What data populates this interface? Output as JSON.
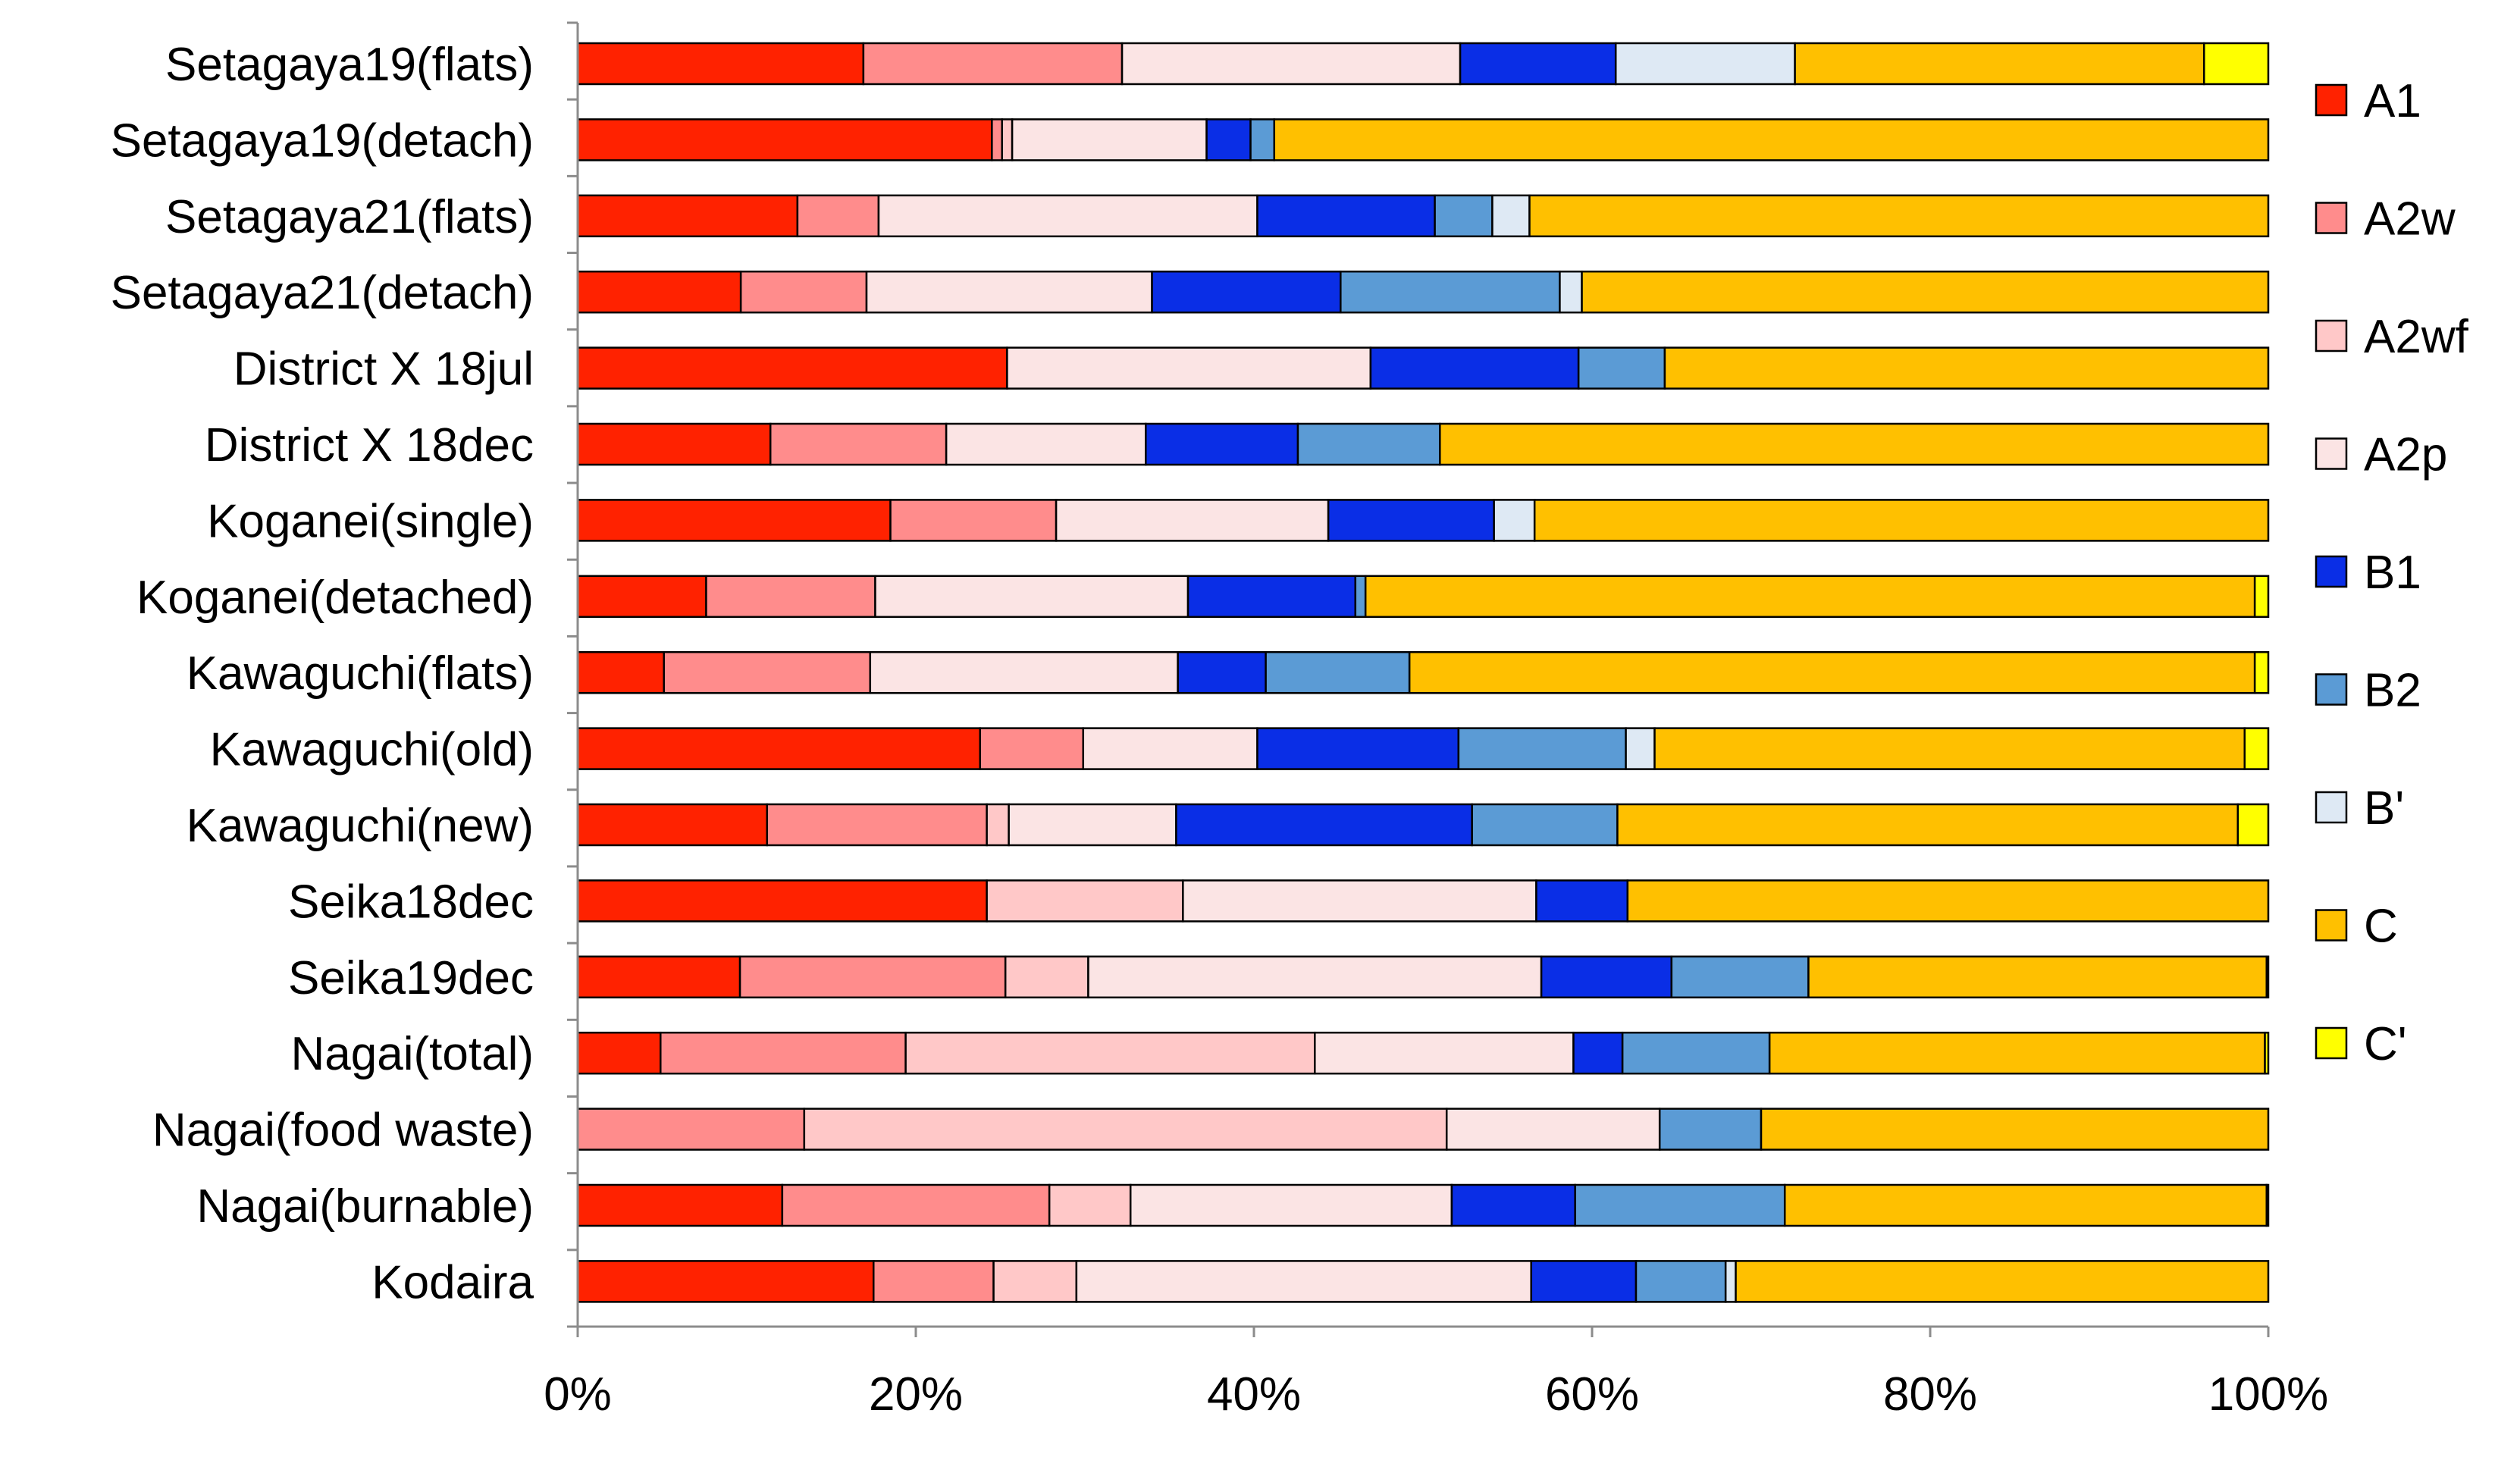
{
  "chart_data": {
    "type": "bar",
    "orientation": "horizontal",
    "stacked": "percent",
    "title": "",
    "xlabel": "",
    "ylabel": "",
    "xlim": [
      0,
      100
    ],
    "x_tick_labels": [
      "0%",
      "20%",
      "40%",
      "60%",
      "80%",
      "100%"
    ],
    "x_tick_values": [
      0,
      20,
      40,
      60,
      80,
      100
    ],
    "grid": false,
    "legend_position": "right",
    "categories": [
      "Setagaya19(flats)",
      "Setagaya19(detach)",
      "Setagaya21(flats)",
      "Setagaya21(detach)",
      "District X 18jul",
      "District X 18dec",
      "Koganei(single)",
      "Koganei(detached)",
      "Kawaguchi(flats)",
      "Kawaguchi(old)",
      "Kawaguchi(new)",
      "Seika18dec",
      "Seika19dec",
      "Nagai(total)",
      "Nagai(food waste)",
      "Nagai(burnable)",
      "Kodaira"
    ],
    "series": [
      {
        "name": "A1",
        "color": "#FF2200",
        "values": [
          16.9,
          24.5,
          13.0,
          9.6,
          25.4,
          11.4,
          18.5,
          7.6,
          5.1,
          23.8,
          11.2,
          24.2,
          9.6,
          4.9,
          0.0,
          12.1,
          17.5
        ]
      },
      {
        "name": "A2w",
        "color": "#FF8C8C",
        "values": [
          15.3,
          0.6,
          4.8,
          7.4,
          0.0,
          10.4,
          9.8,
          10.0,
          12.2,
          6.1,
          13.0,
          0.0,
          15.7,
          14.5,
          13.4,
          15.8,
          7.1
        ]
      },
      {
        "name": "A2wf",
        "color": "#FFC8C8",
        "values": [
          0.0,
          0.6,
          0.0,
          0.0,
          0.0,
          0.0,
          0.0,
          0.0,
          0.0,
          0.0,
          1.3,
          11.6,
          4.9,
          24.2,
          38.0,
          4.8,
          4.9
        ]
      },
      {
        "name": "A2p",
        "color": "#FBE4E4",
        "values": [
          20.0,
          11.5,
          22.4,
          16.8,
          21.5,
          11.8,
          16.1,
          18.5,
          18.2,
          10.3,
          9.9,
          20.9,
          26.8,
          15.3,
          12.6,
          19.0,
          26.9
        ]
      },
      {
        "name": "B1",
        "color": "#0A2EE6",
        "values": [
          9.2,
          2.6,
          10.5,
          11.1,
          12.3,
          9.0,
          9.8,
          9.9,
          5.2,
          11.9,
          17.5,
          5.4,
          7.7,
          2.9,
          0.0,
          7.3,
          6.2
        ]
      },
      {
        "name": "B2",
        "color": "#5B9BD5",
        "values": [
          0.0,
          1.4,
          3.4,
          12.9,
          5.1,
          8.4,
          0.0,
          0.6,
          8.5,
          9.9,
          8.6,
          0.0,
          8.1,
          8.7,
          6.0,
          12.4,
          5.3
        ]
      },
      {
        "name": "B'",
        "color": "#DEE9F4",
        "values": [
          10.6,
          0.0,
          2.2,
          1.3,
          0.0,
          0.0,
          2.4,
          0.0,
          0.0,
          1.7,
          0.0,
          0.0,
          0.0,
          0.0,
          0.0,
          0.0,
          0.6
        ]
      },
      {
        "name": "C",
        "color": "#FFC000",
        "values": [
          24.2,
          58.8,
          43.7,
          40.4,
          35.7,
          49.0,
          43.4,
          52.6,
          50.0,
          34.9,
          36.7,
          37.9,
          27.1,
          29.3,
          30.0,
          28.5,
          31.5
        ]
      },
      {
        "name": "C'",
        "color": "#FFFF00",
        "values": [
          3.8,
          0.0,
          0.0,
          0.0,
          0.0,
          0.0,
          0.0,
          0.8,
          0.8,
          1.4,
          1.8,
          0.0,
          0.1,
          0.2,
          0.0,
          0.1,
          0.0
        ]
      }
    ]
  }
}
